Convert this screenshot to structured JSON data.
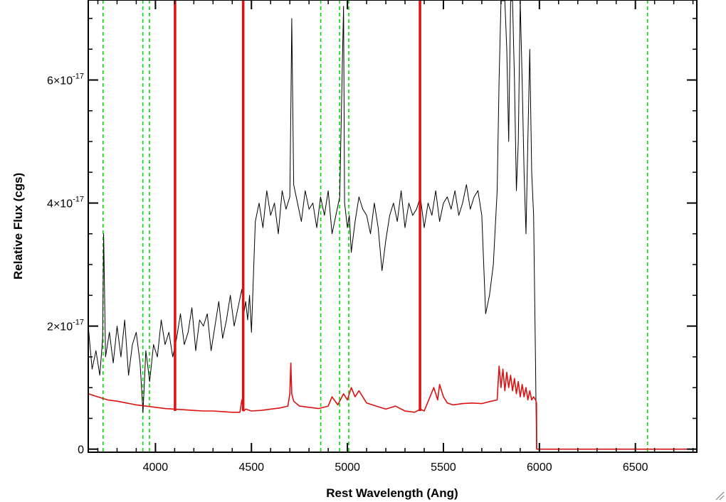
{
  "chart_data": {
    "type": "line",
    "title": "",
    "xlabel": "Rest Wavelength (Ang)",
    "ylabel": "Relative Flux (cgs)",
    "xlim": [
      3650,
      6820
    ],
    "ylim": [
      -0.05,
      7.3
    ],
    "y_exponent_note": "values in units of 1e-17",
    "grid": false,
    "legend": "none",
    "x_ticks": [
      {
        "value": 4000,
        "label": "4000"
      },
      {
        "value": 4500,
        "label": "4500"
      },
      {
        "value": 5000,
        "label": "5000"
      },
      {
        "value": 5500,
        "label": "5500"
      },
      {
        "value": 6000,
        "label": "6000"
      },
      {
        "value": 6500,
        "label": "6500"
      }
    ],
    "y_ticks": [
      {
        "value": 0,
        "base": "0",
        "exp": ""
      },
      {
        "value": 2,
        "base": "2×10",
        "exp": "-17"
      },
      {
        "value": 4,
        "base": "4×10",
        "exp": "-17"
      },
      {
        "value": 6,
        "base": "6×10",
        "exp": "-17"
      }
    ],
    "x_minor_step": 100,
    "y_minor_step": 0.5,
    "colors": {
      "spectrum": "#000000",
      "error": "#dd1111",
      "red_line": "#dd1111",
      "green_line": "#00dd00"
    },
    "green_lines": [
      3727,
      3934,
      3969,
      4861,
      4959,
      5007,
      6563
    ],
    "red_lines": [
      4102,
      4457,
      5378
    ],
    "series": [
      {
        "role": "spectrum",
        "x": [
          3650,
          3670,
          3690,
          3710,
          3725,
          3730,
          3740,
          3760,
          3780,
          3800,
          3820,
          3840,
          3860,
          3880,
          3900,
          3920,
          3935,
          3950,
          3970,
          3990,
          4010,
          4030,
          4050,
          4070,
          4090,
          4110,
          4130,
          4150,
          4170,
          4190,
          4210,
          4230,
          4250,
          4270,
          4290,
          4310,
          4330,
          4350,
          4370,
          4390,
          4410,
          4430,
          4450,
          4460,
          4470,
          4480,
          4490,
          4500,
          4520,
          4540,
          4560,
          4580,
          4600,
          4620,
          4640,
          4660,
          4680,
          4700,
          4705,
          4710,
          4720,
          4740,
          4760,
          4780,
          4800,
          4820,
          4840,
          4860,
          4880,
          4900,
          4920,
          4940,
          4960,
          4975,
          4980,
          4985,
          5000,
          5010,
          5020,
          5040,
          5060,
          5080,
          5100,
          5120,
          5140,
          5160,
          5180,
          5200,
          5220,
          5240,
          5260,
          5280,
          5300,
          5320,
          5340,
          5360,
          5380,
          5400,
          5420,
          5440,
          5460,
          5480,
          5500,
          5520,
          5540,
          5560,
          5580,
          5600,
          5620,
          5640,
          5660,
          5680,
          5700,
          5720,
          5740,
          5760,
          5780,
          5790,
          5800,
          5810,
          5820,
          5830,
          5840,
          5850,
          5860,
          5870,
          5880,
          5890,
          5900,
          5910,
          5920,
          5930,
          5940,
          5950,
          5960,
          5970,
          5980,
          5985
        ],
        "y": [
          2.0,
          1.3,
          1.6,
          1.2,
          1.8,
          3.5,
          1.5,
          1.9,
          1.4,
          2.0,
          1.5,
          2.1,
          1.2,
          1.7,
          1.9,
          1.4,
          0.6,
          1.6,
          1.1,
          1.7,
          1.5,
          2.1,
          1.7,
          1.9,
          1.5,
          1.8,
          2.2,
          1.7,
          1.9,
          2.3,
          1.6,
          2.1,
          2.0,
          2.2,
          1.6,
          2.0,
          2.4,
          1.8,
          2.1,
          2.5,
          2.0,
          2.3,
          2.6,
          2.2,
          2.4,
          2.1,
          2.5,
          1.9,
          3.7,
          4.0,
          3.6,
          4.2,
          3.8,
          4.0,
          3.5,
          4.2,
          3.9,
          4.1,
          5.5,
          7.0,
          4.3,
          4.0,
          3.7,
          4.2,
          3.9,
          4.0,
          3.6,
          4.1,
          3.8,
          4.2,
          3.5,
          3.8,
          4.1,
          6.5,
          7.2,
          4.0,
          3.6,
          3.8,
          3.2,
          3.7,
          4.1,
          3.9,
          3.8,
          3.5,
          4.0,
          3.6,
          2.9,
          3.4,
          3.8,
          4.0,
          3.7,
          4.2,
          3.6,
          4.0,
          3.8,
          3.9,
          4.1,
          3.6,
          4.0,
          3.8,
          4.2,
          3.7,
          4.0,
          4.1,
          3.9,
          4.2,
          3.8,
          4.0,
          4.3,
          3.9,
          4.1,
          4.2,
          3.8,
          2.2,
          2.5,
          3.0,
          4.2,
          6.0,
          7.3,
          7.3,
          7.3,
          6.5,
          5.0,
          7.3,
          7.3,
          6.0,
          4.2,
          5.0,
          7.3,
          6.0,
          4.5,
          3.5,
          5.0,
          6.5,
          4.5,
          3.8,
          1.4,
          0.0
        ]
      },
      {
        "role": "error",
        "x": [
          3650,
          3700,
          3750,
          3800,
          3850,
          3900,
          3950,
          4000,
          4050,
          4100,
          4150,
          4200,
          4250,
          4300,
          4350,
          4400,
          4440,
          4450,
          4460,
          4470,
          4500,
          4550,
          4600,
          4650,
          4690,
          4700,
          4705,
          4710,
          4720,
          4750,
          4800,
          4850,
          4900,
          4920,
          4950,
          4980,
          5000,
          5020,
          5040,
          5060,
          5100,
          5150,
          5200,
          5250,
          5300,
          5350,
          5380,
          5400,
          5450,
          5470,
          5480,
          5500,
          5520,
          5550,
          5600,
          5650,
          5700,
          5750,
          5780,
          5790,
          5800,
          5810,
          5820,
          5830,
          5840,
          5850,
          5860,
          5870,
          5880,
          5890,
          5900,
          5910,
          5920,
          5930,
          5940,
          5950,
          5960,
          5970,
          5980,
          5985,
          5986,
          6820
        ],
        "y": [
          0.9,
          0.85,
          0.8,
          0.78,
          0.75,
          0.72,
          0.7,
          0.68,
          0.66,
          0.65,
          0.64,
          0.63,
          0.62,
          0.62,
          0.61,
          0.6,
          0.6,
          0.8,
          0.62,
          0.65,
          0.62,
          0.63,
          0.65,
          0.67,
          0.7,
          0.9,
          1.4,
          0.9,
          0.78,
          0.7,
          0.68,
          0.66,
          0.7,
          0.85,
          0.72,
          0.9,
          0.8,
          1.0,
          0.85,
          0.95,
          0.75,
          0.7,
          0.65,
          0.7,
          0.62,
          0.6,
          0.65,
          0.62,
          1.0,
          0.8,
          1.05,
          0.85,
          0.75,
          0.72,
          0.74,
          0.75,
          0.74,
          0.78,
          0.8,
          1.35,
          1.0,
          1.3,
          0.95,
          1.25,
          1.0,
          1.2,
          0.95,
          1.15,
          0.9,
          1.1,
          0.85,
          1.05,
          0.85,
          1.0,
          0.8,
          0.95,
          0.8,
          0.85,
          0.8,
          0.75,
          0.0,
          0.0
        ]
      }
    ]
  }
}
